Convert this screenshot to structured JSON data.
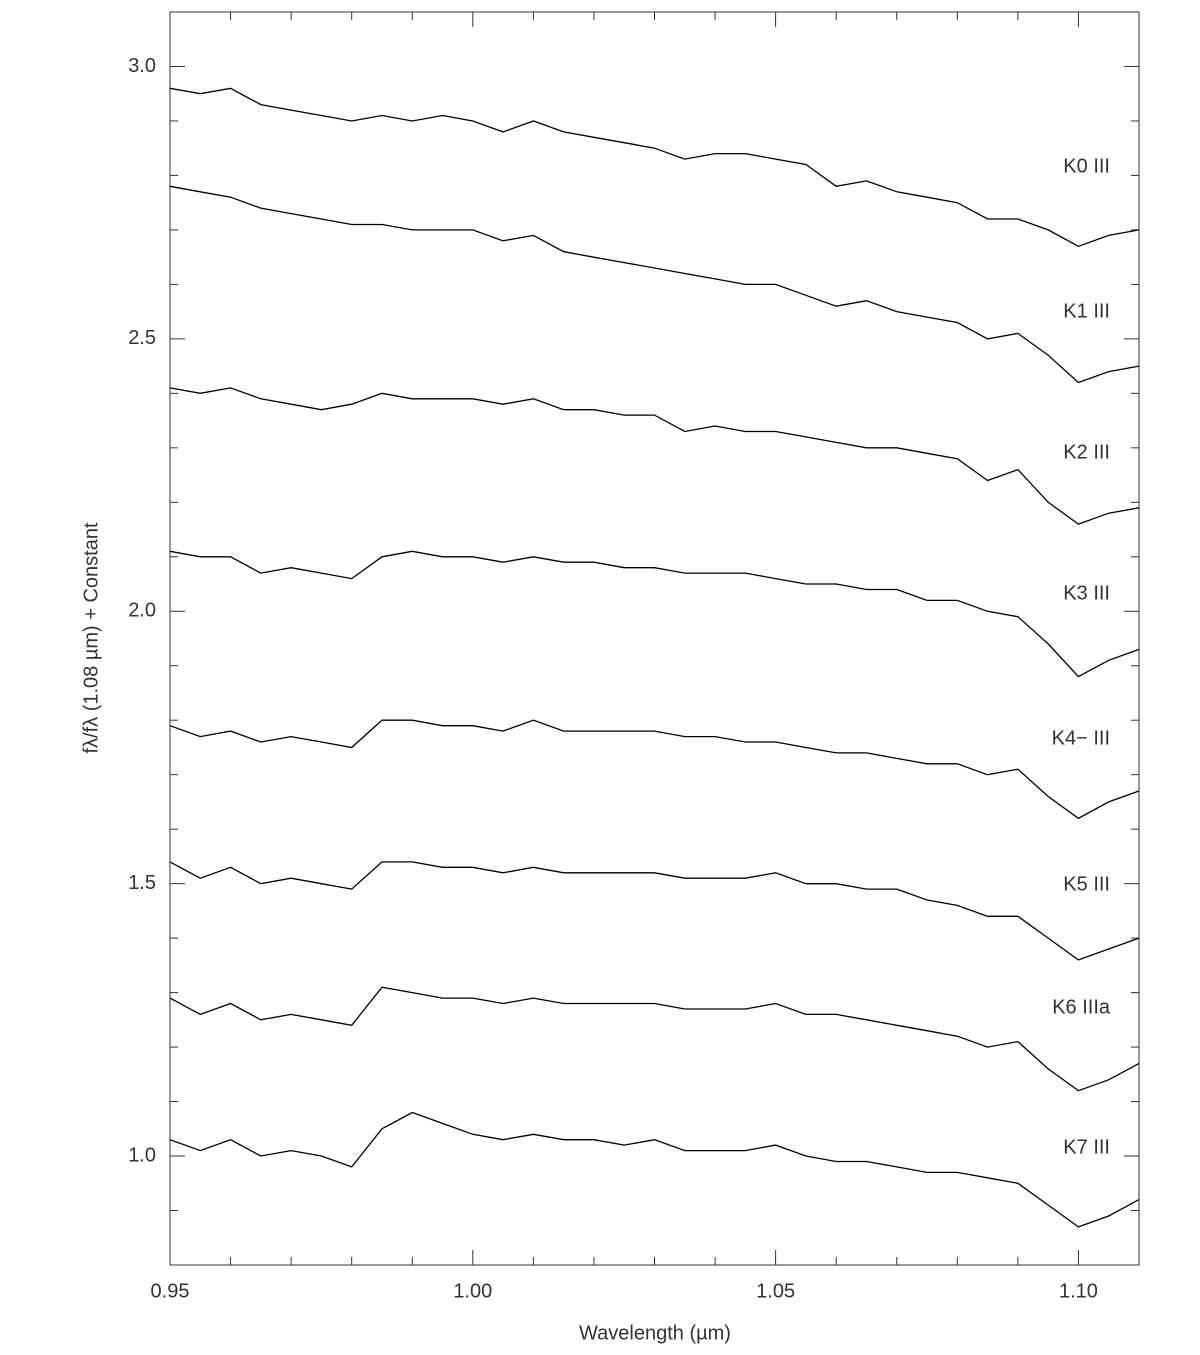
{
  "chart_data": {
    "type": "line",
    "x_label": "Wavelength (µm)",
    "y_label": "fλ/fλ (1.08 µm) + Constant",
    "xlim": [
      0.95,
      1.11
    ],
    "ylim": [
      0.8,
      3.1
    ],
    "xticks": [
      0.95,
      {
        "value": 1.0,
        "label": "1.00"
      },
      1.05,
      {
        "value": 1.1,
        "label": "1.10"
      }
    ],
    "yticks": [
      {
        "value": 1.0,
        "label": "1.0"
      },
      1.5,
      {
        "value": 2.0,
        "label": "2.0"
      },
      2.5,
      {
        "value": 3.0,
        "label": "3.0"
      }
    ],
    "x_minor_ticks": [
      0.96,
      0.97,
      0.98,
      0.99,
      1.01,
      1.02,
      1.03,
      1.04,
      1.06,
      1.07,
      1.08,
      1.09
    ],
    "y_minor_ticks": [
      0.9,
      1.1,
      1.2,
      1.3,
      1.4,
      1.6,
      1.7,
      1.8,
      1.9,
      2.1,
      2.2,
      2.3,
      2.4,
      2.6,
      2.7,
      2.8,
      2.9
    ],
    "x": [
      0.95,
      0.955,
      0.96,
      0.965,
      0.97,
      0.975,
      0.98,
      0.985,
      0.99,
      0.995,
      1.0,
      1.005,
      1.01,
      1.015,
      1.02,
      1.025,
      1.03,
      1.035,
      1.04,
      1.045,
      1.05,
      1.055,
      1.06,
      1.065,
      1.07,
      1.075,
      1.08,
      1.085,
      1.09,
      1.095,
      1.1,
      1.105,
      1.11
    ],
    "series": [
      {
        "name": "K0 III",
        "color": "#000000",
        "values": [
          2.96,
          2.95,
          2.96,
          2.93,
          2.92,
          2.91,
          2.9,
          2.91,
          2.9,
          2.91,
          2.9,
          2.88,
          2.9,
          2.88,
          2.87,
          2.86,
          2.85,
          2.83,
          2.84,
          2.84,
          2.83,
          2.82,
          2.78,
          2.79,
          2.77,
          2.76,
          2.75,
          2.72,
          2.72,
          2.7,
          2.67,
          2.69,
          2.7
        ]
      },
      {
        "name": "K1 III",
        "color": "#000000",
        "values": [
          2.78,
          2.77,
          2.76,
          2.74,
          2.73,
          2.72,
          2.71,
          2.71,
          2.7,
          2.7,
          2.7,
          2.68,
          2.69,
          2.66,
          2.65,
          2.64,
          2.63,
          2.62,
          2.61,
          2.6,
          2.6,
          2.58,
          2.56,
          2.57,
          2.55,
          2.54,
          2.53,
          2.5,
          2.51,
          2.47,
          2.42,
          2.44,
          2.45
        ]
      },
      {
        "name": "K2 III",
        "color": "#000000",
        "values": [
          2.41,
          2.4,
          2.41,
          2.39,
          2.38,
          2.37,
          2.38,
          2.4,
          2.39,
          2.39,
          2.39,
          2.38,
          2.39,
          2.37,
          2.37,
          2.36,
          2.36,
          2.33,
          2.34,
          2.33,
          2.33,
          2.32,
          2.31,
          2.3,
          2.3,
          2.29,
          2.28,
          2.24,
          2.26,
          2.2,
          2.16,
          2.18,
          2.19
        ]
      },
      {
        "name": "K3 III",
        "color": "#000000",
        "values": [
          2.11,
          2.1,
          2.1,
          2.07,
          2.08,
          2.07,
          2.06,
          2.1,
          2.11,
          2.1,
          2.1,
          2.09,
          2.1,
          2.09,
          2.09,
          2.08,
          2.08,
          2.07,
          2.07,
          2.07,
          2.06,
          2.05,
          2.05,
          2.04,
          2.04,
          2.02,
          2.02,
          2.0,
          1.99,
          1.94,
          1.88,
          1.91,
          1.93
        ]
      },
      {
        "name": "K4− III",
        "color": "#000000",
        "values": [
          1.79,
          1.77,
          1.78,
          1.76,
          1.77,
          1.76,
          1.75,
          1.8,
          1.8,
          1.79,
          1.79,
          1.78,
          1.8,
          1.78,
          1.78,
          1.78,
          1.78,
          1.77,
          1.77,
          1.76,
          1.76,
          1.75,
          1.74,
          1.74,
          1.73,
          1.72,
          1.72,
          1.7,
          1.71,
          1.66,
          1.62,
          1.65,
          1.67
        ]
      },
      {
        "name": "K5 III",
        "color": "#000000",
        "values": [
          1.54,
          1.51,
          1.53,
          1.5,
          1.51,
          1.5,
          1.49,
          1.54,
          1.54,
          1.53,
          1.53,
          1.52,
          1.53,
          1.52,
          1.52,
          1.52,
          1.52,
          1.51,
          1.51,
          1.51,
          1.52,
          1.5,
          1.5,
          1.49,
          1.49,
          1.47,
          1.46,
          1.44,
          1.44,
          1.4,
          1.36,
          1.38,
          1.4
        ]
      },
      {
        "name": "K6 IIIa",
        "color": "#000000",
        "values": [
          1.29,
          1.26,
          1.28,
          1.25,
          1.26,
          1.25,
          1.24,
          1.31,
          1.3,
          1.29,
          1.29,
          1.28,
          1.29,
          1.28,
          1.28,
          1.28,
          1.28,
          1.27,
          1.27,
          1.27,
          1.28,
          1.26,
          1.26,
          1.25,
          1.24,
          1.23,
          1.22,
          1.2,
          1.21,
          1.16,
          1.12,
          1.14,
          1.17
        ]
      },
      {
        "name": "K7 III",
        "color": "#000000",
        "values": [
          1.03,
          1.01,
          1.03,
          1.0,
          1.01,
          1.0,
          0.98,
          1.05,
          1.08,
          1.06,
          1.04,
          1.03,
          1.04,
          1.03,
          1.03,
          1.02,
          1.03,
          1.01,
          1.01,
          1.01,
          1.02,
          1.0,
          0.99,
          0.99,
          0.98,
          0.97,
          0.97,
          0.96,
          0.95,
          0.91,
          0.87,
          0.89,
          0.92
        ]
      }
    ]
  }
}
